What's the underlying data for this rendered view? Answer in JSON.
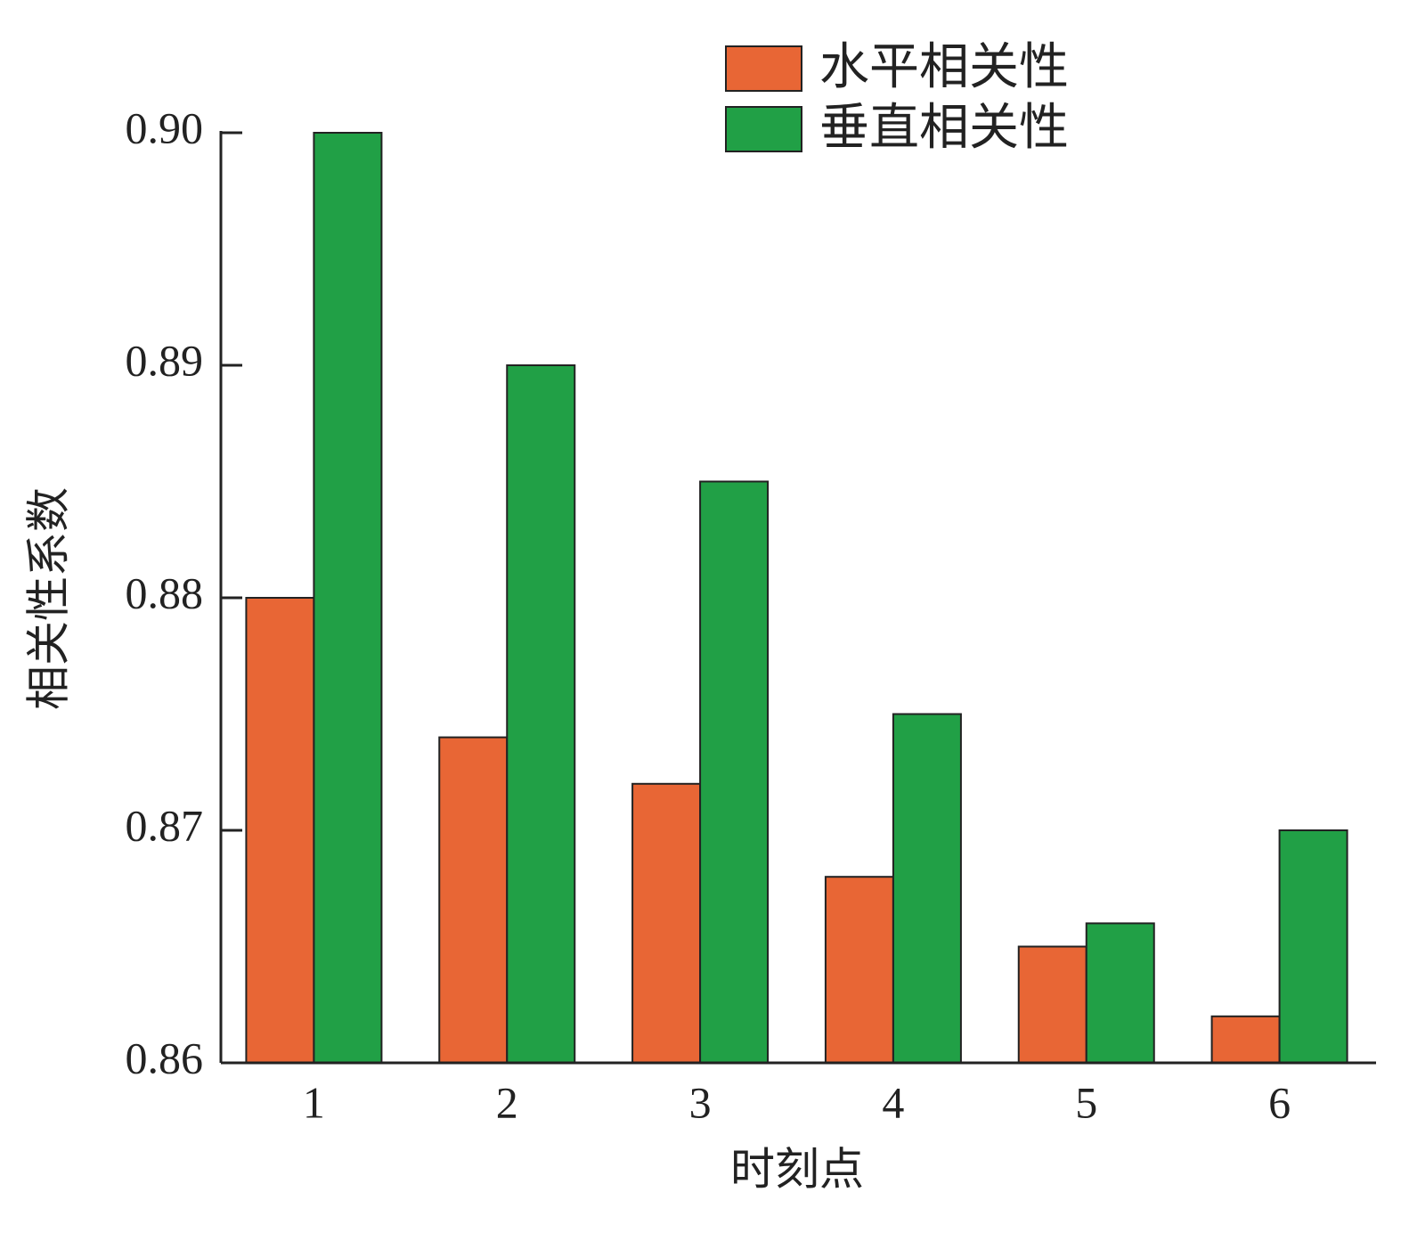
{
  "chart_data": {
    "type": "bar",
    "x_label": "时刻点",
    "y_label": "相关性系数",
    "categories": [
      "1",
      "2",
      "3",
      "4",
      "5",
      "6"
    ],
    "series": [
      {
        "name": "水平相关性",
        "color": "#e86635",
        "values": [
          0.88,
          0.874,
          0.872,
          0.868,
          0.865,
          0.862
        ]
      },
      {
        "name": "垂直相关性",
        "color": "#21a046",
        "values": [
          0.9,
          0.89,
          0.885,
          0.875,
          0.866,
          0.87
        ]
      }
    ],
    "ylim": [
      0.86,
      0.9
    ],
    "yticks": [
      0.86,
      0.87,
      0.88,
      0.89,
      {
        "value": 0.9,
        "label": "0.90"
      }
    ],
    "legend": "top-right"
  }
}
